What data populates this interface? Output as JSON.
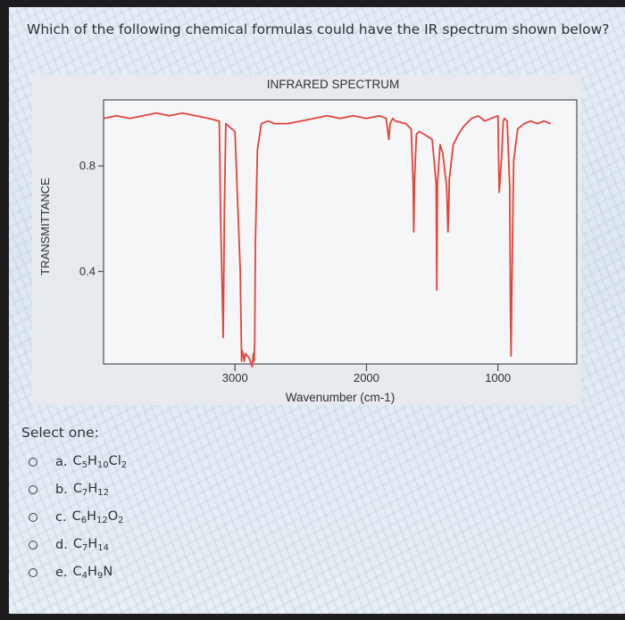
{
  "question": {
    "text": "Which of the following chemical formulas could have the IR spectrum shown below?"
  },
  "chart_data": {
    "type": "line",
    "title": "INFRARED SPECTRUM",
    "xlabel": "Wavenumber (cm-1)",
    "ylabel": "TRANSMITTANCE",
    "x_ticks": [
      "3000",
      "2000",
      "1000"
    ],
    "y_ticks": [
      "0.8",
      "0.4"
    ],
    "xlim": [
      4000,
      400
    ],
    "ylim": [
      0.05,
      1.05
    ],
    "grid": false,
    "series": [
      {
        "color": "#e2453a",
        "x": [
          4000,
          3900,
          3800,
          3700,
          3600,
          3500,
          3400,
          3300,
          3200,
          3120,
          3110,
          3090,
          3080,
          3070,
          3000,
          2960,
          2950,
          2945,
          2935,
          2930,
          2920,
          2890,
          2870,
          2860,
          2855,
          2850,
          2845,
          2830,
          2800,
          2750,
          2700,
          2600,
          2500,
          2400,
          2300,
          2200,
          2100,
          2000,
          1900,
          1850,
          1830,
          1820,
          1800,
          1780,
          1700,
          1660,
          1645,
          1640,
          1635,
          1620,
          1600,
          1560,
          1500,
          1470,
          1465,
          1460,
          1440,
          1420,
          1390,
          1380,
          1375,
          1370,
          1340,
          1300,
          1260,
          1200,
          1150,
          1100,
          1050,
          1000,
          990,
          970,
          960,
          950,
          930,
          910,
          905,
          900,
          895,
          880,
          850,
          800,
          750,
          700,
          650,
          600
        ],
        "y": [
          0.98,
          0.99,
          0.98,
          0.99,
          1.0,
          0.99,
          1.0,
          0.99,
          0.98,
          0.97,
          0.62,
          0.15,
          0.65,
          0.96,
          0.93,
          0.4,
          0.06,
          0.1,
          0.08,
          0.06,
          0.09,
          0.07,
          0.04,
          0.09,
          0.06,
          0.14,
          0.5,
          0.86,
          0.96,
          0.97,
          0.96,
          0.96,
          0.97,
          0.98,
          0.99,
          0.98,
          0.99,
          0.98,
          0.99,
          0.98,
          0.9,
          0.96,
          0.98,
          0.97,
          0.96,
          0.94,
          0.74,
          0.55,
          0.74,
          0.92,
          0.93,
          0.92,
          0.9,
          0.73,
          0.33,
          0.73,
          0.88,
          0.85,
          0.72,
          0.55,
          0.62,
          0.75,
          0.88,
          0.92,
          0.95,
          0.98,
          0.99,
          0.97,
          0.98,
          0.99,
          0.7,
          0.85,
          0.97,
          0.98,
          0.97,
          0.72,
          0.25,
          0.08,
          0.3,
          0.82,
          0.94,
          0.96,
          0.97,
          0.96,
          0.97,
          0.96
        ]
      }
    ]
  },
  "answers": {
    "select_label": "Select one:",
    "options": [
      {
        "letter": "a.",
        "formula": [
          [
            "C",
            "5"
          ],
          [
            "H",
            "10"
          ],
          [
            "Cl",
            "2"
          ]
        ]
      },
      {
        "letter": "b.",
        "formula": [
          [
            "C",
            "7"
          ],
          [
            "H",
            "12"
          ]
        ]
      },
      {
        "letter": "c.",
        "formula": [
          [
            "C",
            "6"
          ],
          [
            "H",
            "12"
          ],
          [
            "O",
            "2"
          ]
        ]
      },
      {
        "letter": "d.",
        "formula": [
          [
            "C",
            "7"
          ],
          [
            "H",
            "14"
          ]
        ]
      },
      {
        "letter": "e.",
        "formula": [
          [
            "C",
            "4"
          ],
          [
            "H",
            "9"
          ],
          [
            "N",
            ""
          ]
        ]
      }
    ]
  }
}
